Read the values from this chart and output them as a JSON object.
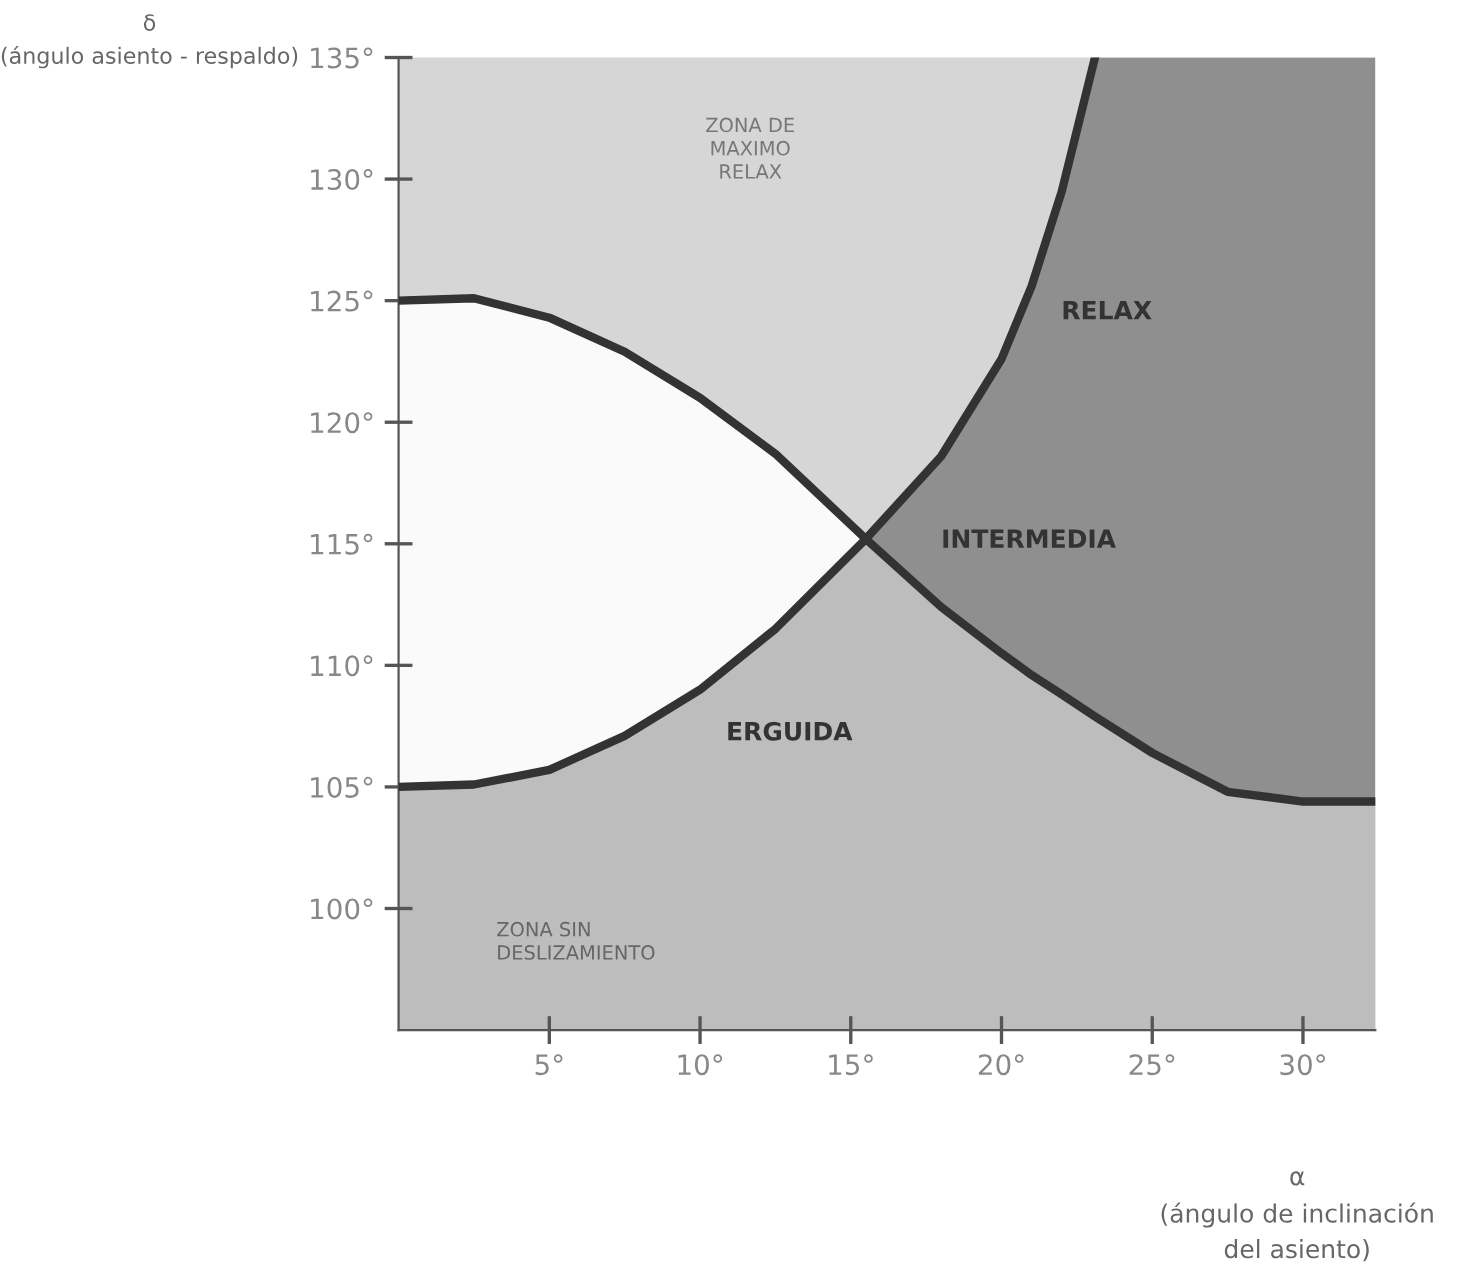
{
  "chart_data": {
    "type": "line",
    "xlabel": "α\n(ángulo de inclinación\ndel asiento)",
    "ylabel": "δ\n(ángulo asiento - respaldo)",
    "xlim": [
      0,
      32.4
    ],
    "ylim": [
      95,
      135
    ],
    "xticks": [
      {
        "value": 5,
        "label": "5°"
      },
      {
        "value": 10,
        "label": "10°"
      },
      {
        "value": 15,
        "label": "15°"
      },
      {
        "value": 20,
        "label": "20°"
      },
      {
        "value": 25,
        "label": "25°"
      },
      {
        "value": 30,
        "label": "30°"
      }
    ],
    "yticks": [
      {
        "value": 100,
        "label": "100°"
      },
      {
        "value": 105,
        "label": "105°"
      },
      {
        "value": 110,
        "label": "110°"
      },
      {
        "value": 115,
        "label": "115°"
      },
      {
        "value": 120,
        "label": "120°"
      },
      {
        "value": 125,
        "label": "125°"
      },
      {
        "value": 130,
        "label": "130°"
      },
      {
        "value": 135,
        "label": "135°"
      }
    ],
    "grid": false,
    "legend": false,
    "series": [
      {
        "type": "area",
        "color": "#fafafa",
        "x": [
          0,
          2.5,
          5,
          7.5,
          10,
          12.5,
          15.5
        ],
        "values": [
          125,
          125.1,
          124.3,
          122.9,
          121,
          118.7,
          115.2
        ]
      },
      {
        "type": "area",
        "color": "#8f8f8f",
        "x": [
          15.5,
          18,
          20,
          21,
          22,
          23.1,
          32.4
        ],
        "values": [
          115.2,
          118.6,
          122.6,
          125.6,
          129.5,
          135,
          135
        ]
      },
      {
        "type": "area",
        "color": "#bdbdbd",
        "x": [
          0,
          2.5,
          5,
          7.5,
          10,
          12.5,
          15.5,
          18,
          20,
          21,
          22,
          23.1,
          25,
          27.5,
          30,
          32.4
        ],
        "values": [
          105,
          105.1,
          105.7,
          107.1,
          109,
          111.5,
          115.2,
          112.4,
          110.5,
          109.6,
          108.8,
          107.9,
          106.4,
          104.8,
          104.4,
          104.4
        ]
      },
      {
        "color": "#333333",
        "x": [
          0,
          2.5,
          5,
          7.5,
          10,
          12.5,
          15.5,
          18,
          20,
          21,
          22,
          23.1,
          25,
          27.5,
          30,
          32.4
        ],
        "values": [
          125,
          125.1,
          124.3,
          122.9,
          121,
          118.7,
          115.2,
          112.4,
          110.5,
          109.6,
          108.8,
          107.9,
          106.4,
          104.8,
          104.4,
          104.4
        ]
      },
      {
        "color": "#333333",
        "x": [
          0,
          2.5,
          5,
          7.5,
          10,
          12.5,
          15.5,
          18,
          20,
          21,
          22,
          23.1
        ],
        "values": [
          105,
          105.1,
          105.7,
          107.1,
          109,
          111.5,
          115.2,
          118.6,
          122.6,
          125.6,
          129.5,
          135
        ]
      }
    ],
    "annotations": [
      "ZONA DE\nMAXIMO\nRELAX",
      "RELAX",
      "INTERMEDIA",
      "ERGUIDA",
      "ZONA SIN\nDESLIZAMIENTO"
    ]
  }
}
